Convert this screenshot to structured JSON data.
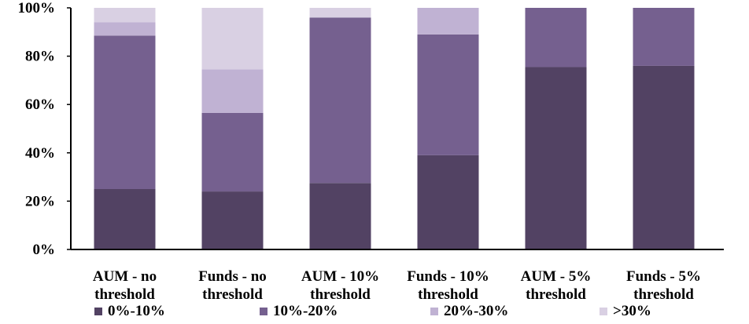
{
  "chart_data": {
    "type": "bar",
    "stacked": true,
    "categories": [
      [
        "AUM - no",
        "threshold"
      ],
      [
        "Funds - no",
        "threshold"
      ],
      [
        "AUM - 10%",
        "threshold"
      ],
      [
        "Funds - 10%",
        "threshold"
      ],
      [
        "AUM - 5%",
        "threshold"
      ],
      [
        "Funds - 5%",
        "threshold"
      ]
    ],
    "series": [
      {
        "name": "0%-10%",
        "color": "#524263",
        "values": [
          25,
          24,
          27.5,
          39,
          75.5,
          76
        ]
      },
      {
        "name": "10%-20%",
        "color": "#75608f",
        "values": [
          63.5,
          32.5,
          68.5,
          50,
          24.5,
          24
        ]
      },
      {
        "name": "20%-30%",
        "color": "#c0b2d3",
        "values": [
          5.5,
          18,
          0,
          11,
          0,
          0
        ]
      },
      {
        "name": ">30%",
        "color": "#d9d0e3",
        "values": [
          6,
          25.5,
          4,
          0,
          0,
          0
        ]
      }
    ],
    "yticks": [
      "0%",
      "20%",
      "40%",
      "60%",
      "80%",
      "100%"
    ],
    "ylim": [
      0,
      100
    ],
    "grid": false,
    "legend_position": "bottom"
  }
}
